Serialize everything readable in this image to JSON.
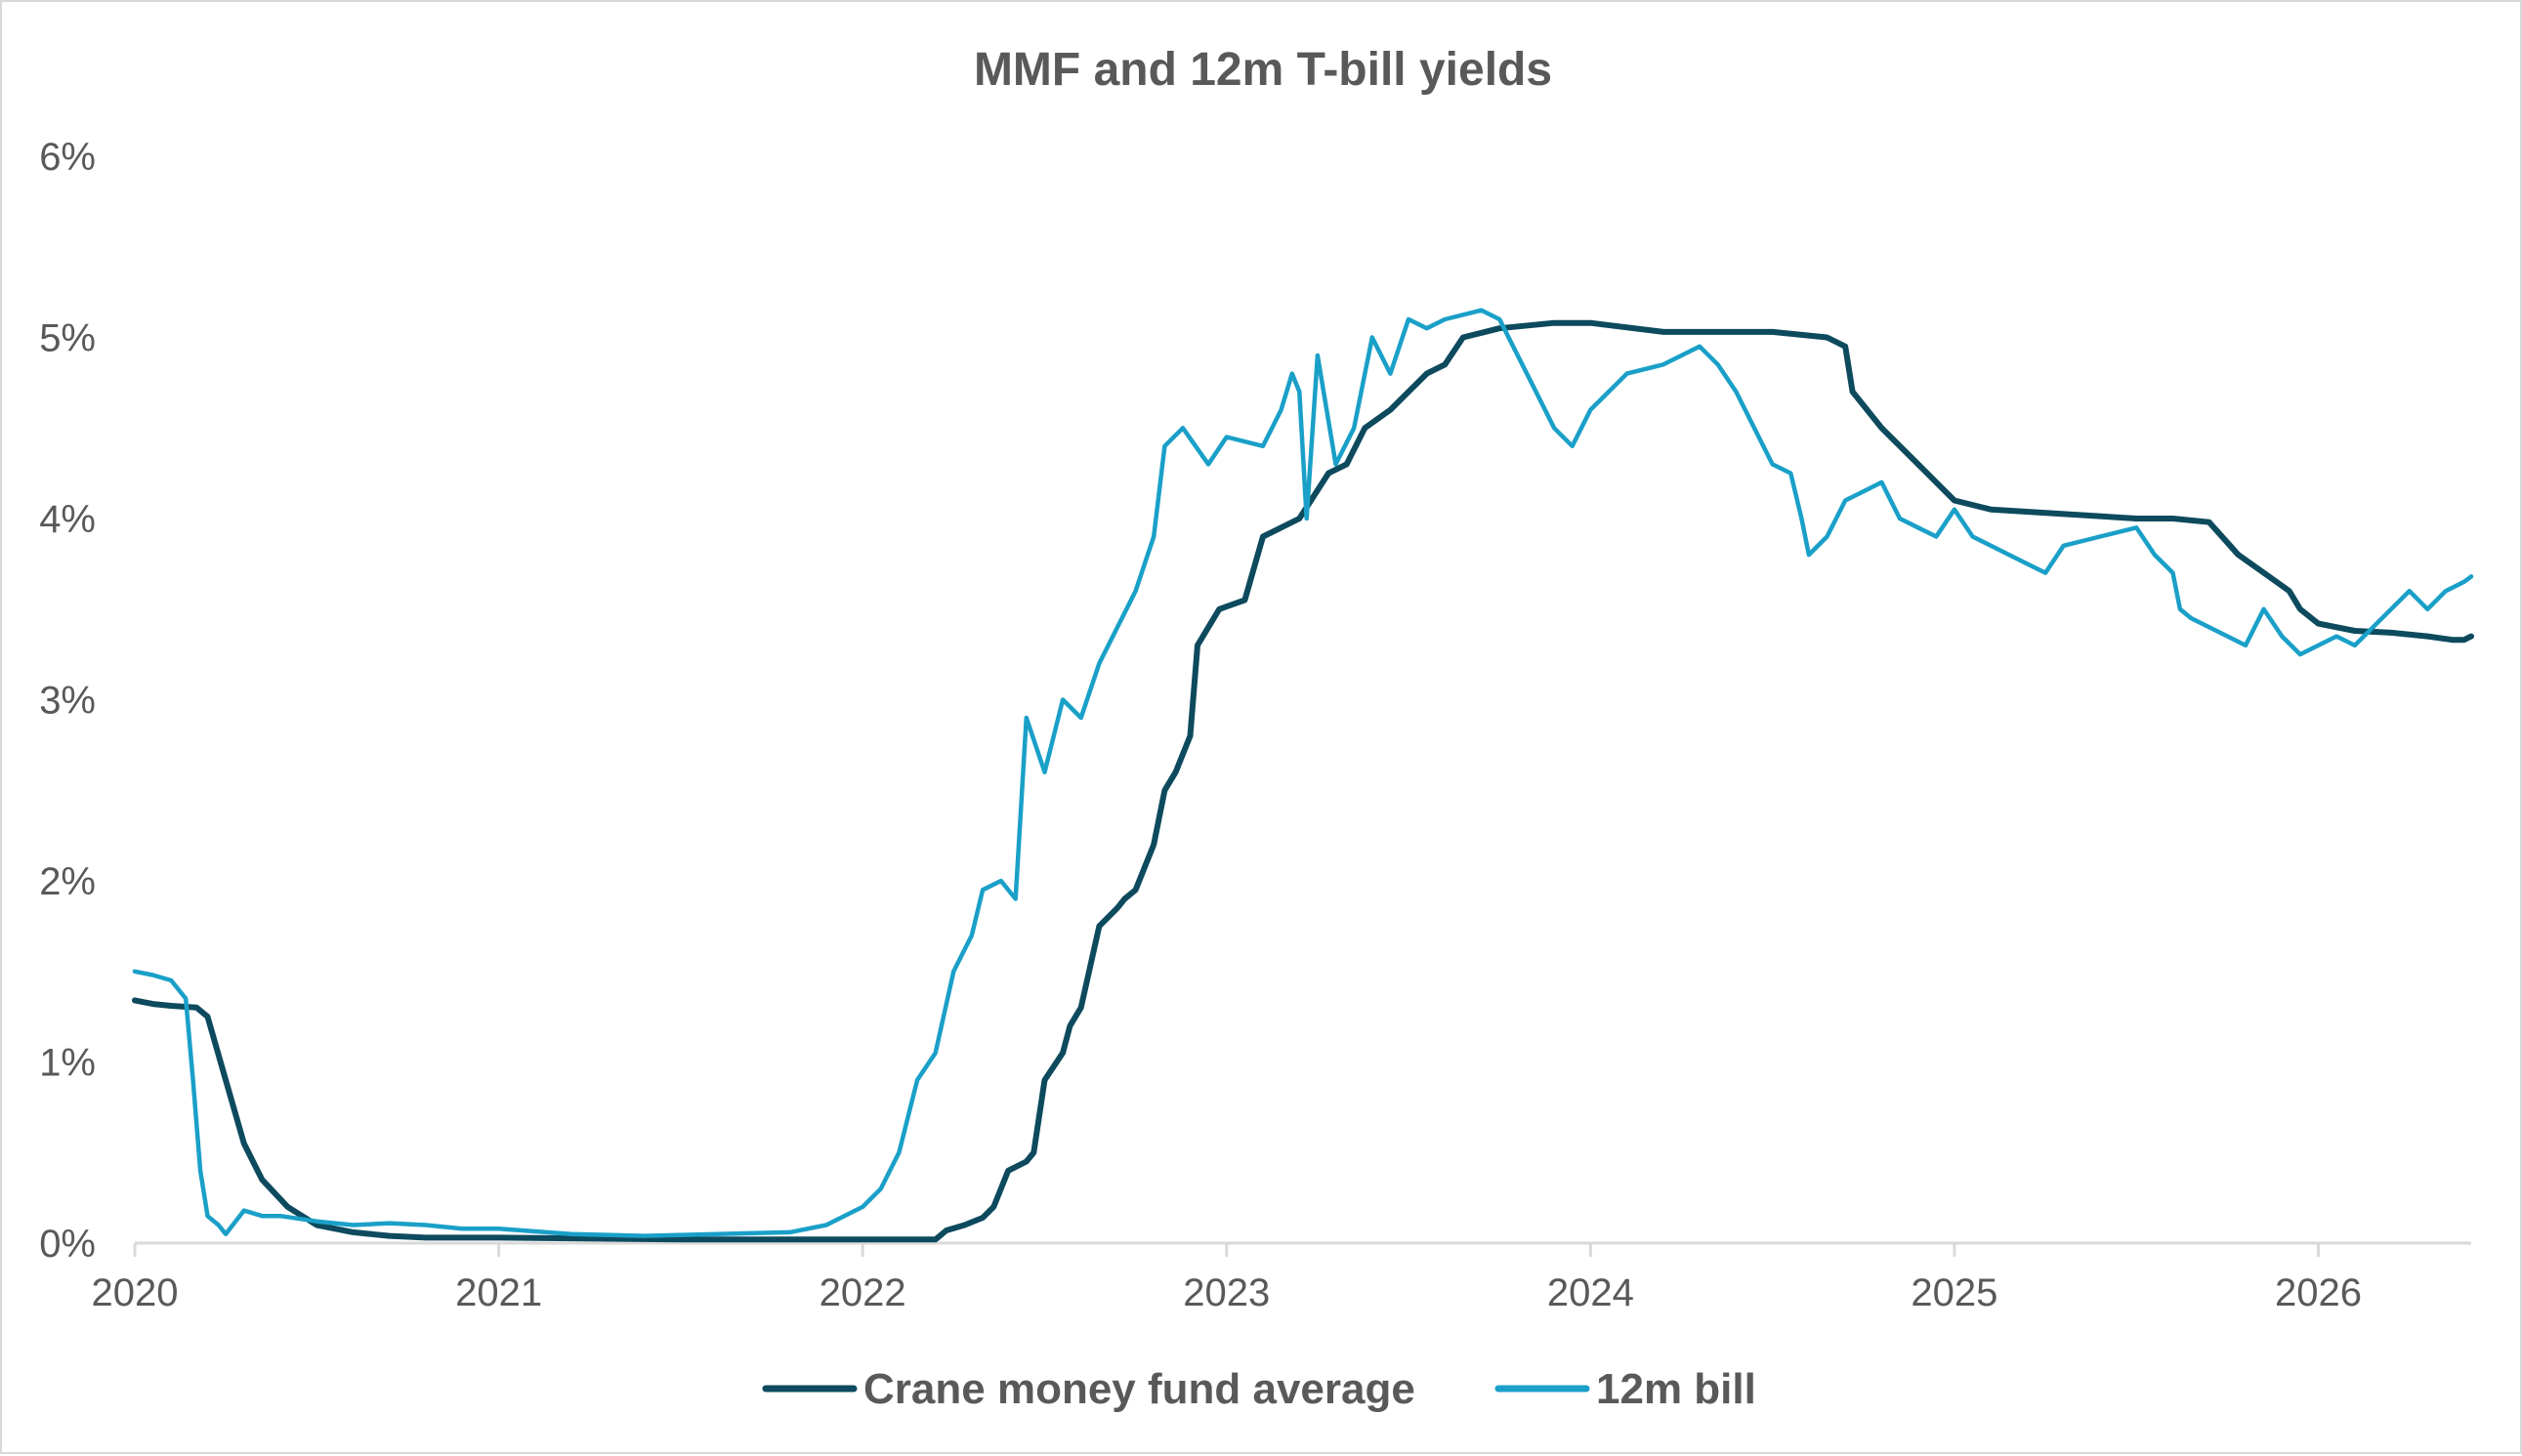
{
  "chart_data": {
    "type": "line",
    "title": "MMF and 12m T-bill yields",
    "xlabel": "",
    "ylabel": "",
    "xlim": [
      2020.0,
      2026.42
    ],
    "ylim": [
      0,
      6
    ],
    "x_ticks": [
      "2020",
      "2021",
      "2022",
      "2023",
      "2024",
      "2025",
      "2026"
    ],
    "x_tick_values": [
      2020,
      2021,
      2022,
      2023,
      2024,
      2025,
      2026
    ],
    "y_ticks": [
      "0%",
      "1%",
      "2%",
      "3%",
      "4%",
      "5%",
      "6%"
    ],
    "y_tick_values": [
      0,
      1,
      2,
      3,
      4,
      5,
      6
    ],
    "grid": false,
    "legend_position": "bottom",
    "colors": {
      "crane": "#0d4a5e",
      "bill": "#1aa0c8",
      "axis": "#d9d9d9",
      "text": "#595959"
    },
    "series": [
      {
        "name": "Crane money fund average",
        "color": "#0d4a5e",
        "x": [
          2020.0,
          2020.05,
          2020.1,
          2020.17,
          2020.2,
          2020.25,
          2020.3,
          2020.35,
          2020.42,
          2020.5,
          2020.6,
          2020.7,
          2020.8,
          2021.0,
          2021.5,
          2021.8,
          2022.0,
          2022.2,
          2022.23,
          2022.28,
          2022.33,
          2022.36,
          2022.4,
          2022.45,
          2022.47,
          2022.5,
          2022.55,
          2022.57,
          2022.6,
          2022.65,
          2022.7,
          2022.72,
          2022.75,
          2022.8,
          2022.83,
          2022.86,
          2022.9,
          2022.92,
          2022.95,
          2022.98,
          2023.05,
          2023.1,
          2023.15,
          2023.2,
          2023.28,
          2023.33,
          2023.38,
          2023.45,
          2023.55,
          2023.6,
          2023.65,
          2023.75,
          2023.9,
          2024.0,
          2024.2,
          2024.5,
          2024.65,
          2024.7,
          2024.72,
          2024.8,
          2024.85,
          2024.9,
          2025.0,
          2025.1,
          2025.5,
          2025.6,
          2025.7,
          2025.78,
          2025.85,
          2025.92,
          2025.95,
          2026.0,
          2026.1,
          2026.2,
          2026.3,
          2026.37,
          2026.4,
          2026.42
        ],
        "values": [
          1.34,
          1.32,
          1.31,
          1.3,
          1.25,
          0.9,
          0.55,
          0.35,
          0.2,
          0.1,
          0.06,
          0.04,
          0.03,
          0.03,
          0.02,
          0.02,
          0.02,
          0.02,
          0.07,
          0.1,
          0.14,
          0.2,
          0.4,
          0.45,
          0.5,
          0.9,
          1.05,
          1.2,
          1.3,
          1.75,
          1.85,
          1.9,
          1.95,
          2.2,
          2.5,
          2.6,
          2.8,
          3.3,
          3.4,
          3.5,
          3.55,
          3.9,
          3.95,
          4.0,
          4.25,
          4.3,
          4.5,
          4.6,
          4.8,
          4.85,
          5.0,
          5.05,
          5.08,
          5.08,
          5.03,
          5.03,
          5.0,
          4.95,
          4.7,
          4.5,
          4.4,
          4.3,
          4.1,
          4.05,
          4.0,
          4.0,
          3.98,
          3.8,
          3.7,
          3.6,
          3.5,
          3.42,
          3.38,
          3.37,
          3.35,
          3.33,
          3.33,
          3.35
        ]
      },
      {
        "name": "12m bill",
        "color": "#1aa0c8",
        "x": [
          2020.0,
          2020.05,
          2020.1,
          2020.14,
          2020.16,
          2020.18,
          2020.2,
          2020.23,
          2020.25,
          2020.3,
          2020.35,
          2020.4,
          2020.5,
          2020.6,
          2020.7,
          2020.8,
          2020.9,
          2021.0,
          2021.2,
          2021.4,
          2021.6,
          2021.8,
          2021.9,
          2022.0,
          2022.05,
          2022.1,
          2022.15,
          2022.2,
          2022.25,
          2022.3,
          2022.33,
          2022.38,
          2022.42,
          2022.45,
          2022.5,
          2022.55,
          2022.6,
          2022.65,
          2022.7,
          2022.75,
          2022.8,
          2022.83,
          2022.88,
          2022.95,
          2023.0,
          2023.1,
          2023.15,
          2023.18,
          2023.2,
          2023.22,
          2023.25,
          2023.3,
          2023.35,
          2023.4,
          2023.45,
          2023.5,
          2023.55,
          2023.6,
          2023.7,
          2023.75,
          2023.8,
          2023.85,
          2023.9,
          2023.95,
          2024.0,
          2024.05,
          2024.1,
          2024.2,
          2024.25,
          2024.3,
          2024.35,
          2024.4,
          2024.5,
          2024.55,
          2024.58,
          2024.6,
          2024.65,
          2024.7,
          2024.75,
          2024.8,
          2024.85,
          2024.9,
          2024.95,
          2025.0,
          2025.05,
          2025.1,
          2025.15,
          2025.2,
          2025.25,
          2025.3,
          2025.4,
          2025.5,
          2025.55,
          2025.6,
          2025.62,
          2025.65,
          2025.7,
          2025.8,
          2025.85,
          2025.9,
          2025.95,
          2026.0,
          2026.05,
          2026.1,
          2026.15,
          2026.2,
          2026.25,
          2026.3,
          2026.35,
          2026.4,
          2026.42
        ],
        "values": [
          1.5,
          1.48,
          1.45,
          1.35,
          0.9,
          0.4,
          0.15,
          0.1,
          0.05,
          0.18,
          0.15,
          0.15,
          0.12,
          0.1,
          0.11,
          0.1,
          0.08,
          0.08,
          0.05,
          0.04,
          0.05,
          0.06,
          0.1,
          0.2,
          0.3,
          0.5,
          0.9,
          1.05,
          1.5,
          1.7,
          1.95,
          2.0,
          1.9,
          2.9,
          2.6,
          3.0,
          2.9,
          3.2,
          3.4,
          3.6,
          3.9,
          4.4,
          4.5,
          4.3,
          4.45,
          4.4,
          4.6,
          4.8,
          4.7,
          4.0,
          4.9,
          4.3,
          4.5,
          5.0,
          4.8,
          5.1,
          5.05,
          5.1,
          5.15,
          5.1,
          4.9,
          4.7,
          4.5,
          4.4,
          4.6,
          4.7,
          4.8,
          4.85,
          4.9,
          4.95,
          4.85,
          4.7,
          4.3,
          4.25,
          4.0,
          3.8,
          3.9,
          4.1,
          4.15,
          4.2,
          4.0,
          3.95,
          3.9,
          4.05,
          3.9,
          3.85,
          3.8,
          3.75,
          3.7,
          3.85,
          3.9,
          3.95,
          3.8,
          3.7,
          3.5,
          3.45,
          3.4,
          3.3,
          3.5,
          3.35,
          3.25,
          3.3,
          3.35,
          3.3,
          3.4,
          3.5,
          3.6,
          3.5,
          3.6,
          3.65,
          3.68
        ]
      }
    ]
  }
}
